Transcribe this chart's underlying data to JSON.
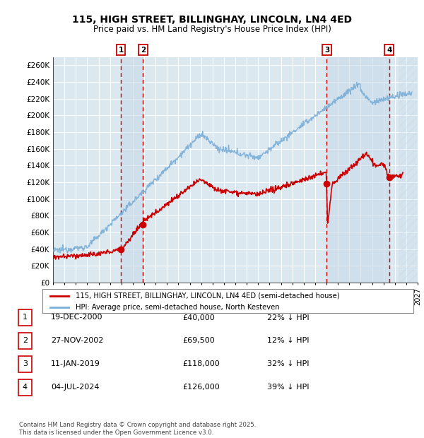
{
  "title": "115, HIGH STREET, BILLINGHAY, LINCOLN, LN4 4ED",
  "subtitle": "Price paid vs. HM Land Registry's House Price Index (HPI)",
  "legend_line1": "115, HIGH STREET, BILLINGHAY, LINCOLN, LN4 4ED (semi-detached house)",
  "legend_line2": "HPI: Average price, semi-detached house, North Kesteven",
  "footer": "Contains HM Land Registry data © Crown copyright and database right 2025.\nThis data is licensed under the Open Government Licence v3.0.",
  "sale_color": "#cc0000",
  "hpi_color": "#7aaed6",
  "background_color": "#ffffff",
  "plot_bg_color": "#dce8f0",
  "grid_color": "#ffffff",
  "ylim": [
    0,
    270000
  ],
  "yticks": [
    0,
    20000,
    40000,
    60000,
    80000,
    100000,
    120000,
    140000,
    160000,
    180000,
    200000,
    220000,
    240000,
    260000
  ],
  "sales": [
    {
      "date_num": 2000.96,
      "price": 40000,
      "label": "1"
    },
    {
      "date_num": 2002.9,
      "price": 69500,
      "label": "2"
    },
    {
      "date_num": 2019.03,
      "price": 118000,
      "label": "3"
    },
    {
      "date_num": 2024.5,
      "price": 126000,
      "label": "4"
    }
  ],
  "table_rows": [
    {
      "num": "1",
      "date": "19-DEC-2000",
      "price": "£40,000",
      "hpi": "22% ↓ HPI"
    },
    {
      "num": "2",
      "date": "27-NOV-2002",
      "price": "£69,500",
      "hpi": "12% ↓ HPI"
    },
    {
      "num": "3",
      "date": "11-JAN-2019",
      "price": "£118,000",
      "hpi": "32% ↓ HPI"
    },
    {
      "num": "4",
      "date": "04-JUL-2024",
      "price": "£126,000",
      "hpi": "39% ↓ HPI"
    }
  ],
  "xmin": 1995.0,
  "xmax": 2027.0
}
